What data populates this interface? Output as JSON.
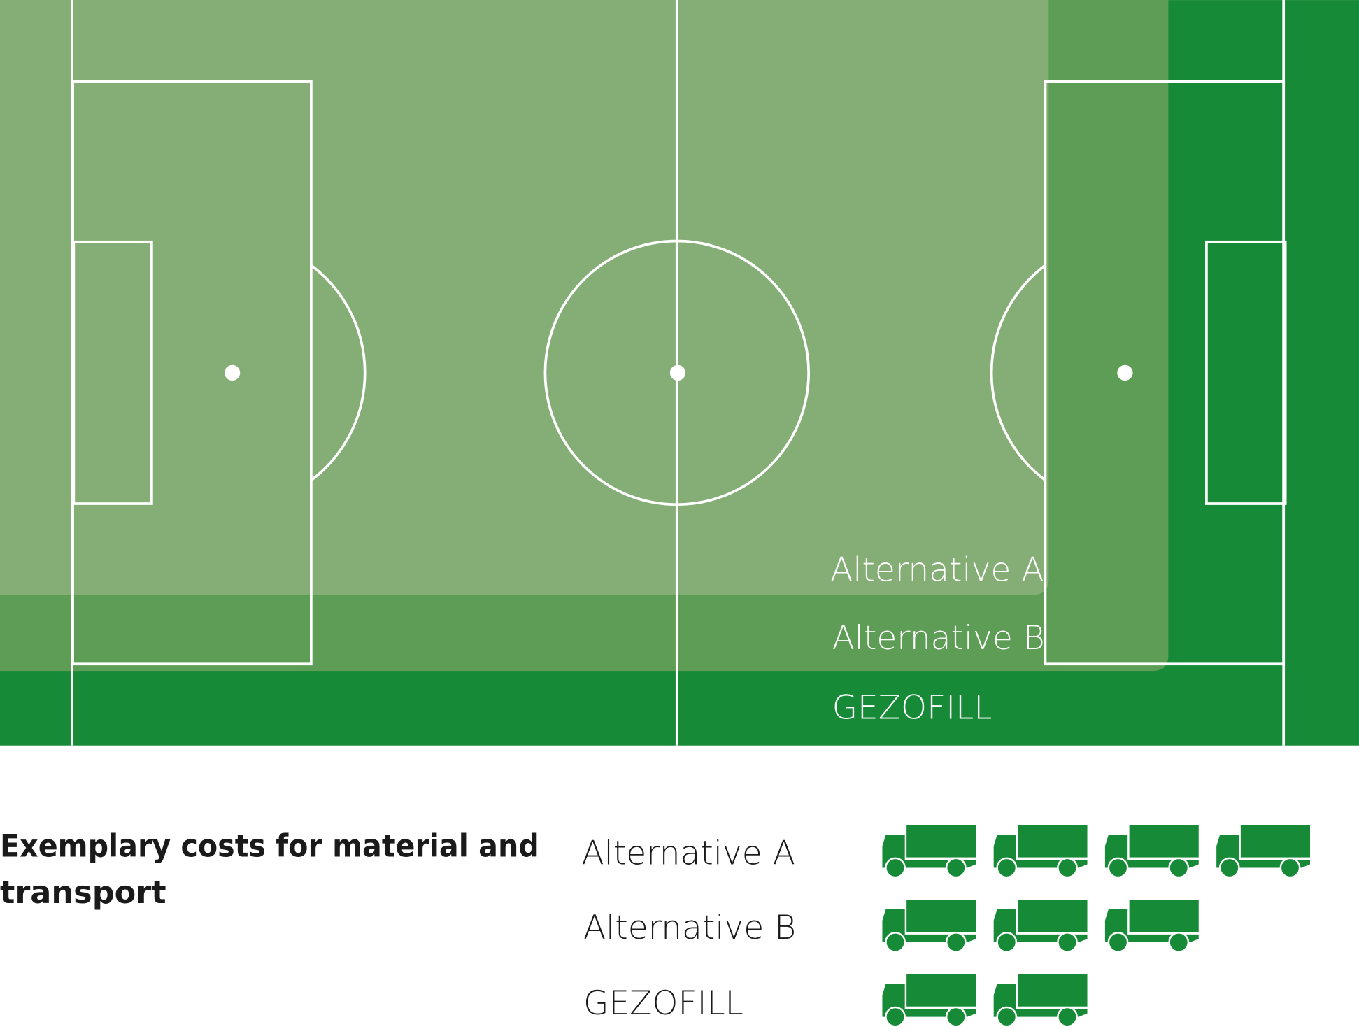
{
  "colors": {
    "gezofill": "#168a37",
    "alternative_b": "#5e9d55",
    "alternative_a": "#85ad76",
    "lines": "#ffffff",
    "truck": "#168a37",
    "text": "#1a1a1a"
  },
  "field": {
    "labels": [
      "Alternative A",
      "Alternative B",
      "GEZOFILL"
    ]
  },
  "costs": {
    "title_line1": "Exemplary costs for material and",
    "title_line2": "transport",
    "icon": "truck-icon",
    "rows": [
      {
        "label": "Alternative A",
        "trucks": 4
      },
      {
        "label": "Alternative B",
        "trucks": 3
      },
      {
        "label": "GEZOFILL",
        "trucks": 2
      }
    ]
  }
}
